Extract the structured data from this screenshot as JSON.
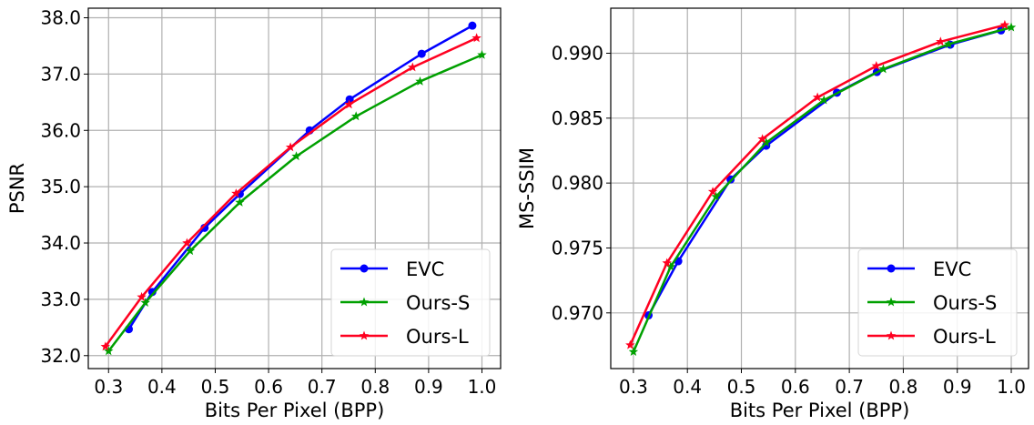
{
  "chart_data": [
    {
      "type": "line",
      "title": "",
      "xlabel": "Bits Per Pixel (BPP)",
      "ylabel": "PSNR",
      "xlim": [
        0.262,
        1.035
      ],
      "ylim": [
        31.77,
        38.17
      ],
      "xticks": [
        "0.3",
        "0.4",
        "0.5",
        "0.6",
        "0.7",
        "0.8",
        "0.9",
        "1.0"
      ],
      "yticks": [
        "32.0",
        "33.0",
        "34.0",
        "35.0",
        "36.0",
        "37.0",
        "38.0"
      ],
      "grid": true,
      "legend_position": "bottom-right",
      "series": [
        {
          "name": "EVC",
          "color": "#0000ff",
          "marker": "circle",
          "x": [
            0.338,
            0.382,
            0.48,
            0.546,
            0.677,
            0.752,
            0.887,
            0.982
          ],
          "y": [
            32.47,
            33.13,
            34.27,
            34.87,
            36.0,
            36.55,
            37.36,
            37.86
          ]
        },
        {
          "name": "Ours-S",
          "color": "#00a000",
          "marker": "star",
          "x": [
            0.3,
            0.369,
            0.453,
            0.546,
            0.652,
            0.764,
            0.884,
            1.0
          ],
          "y": [
            32.08,
            32.94,
            33.86,
            34.72,
            35.54,
            36.25,
            36.87,
            37.34
          ]
        },
        {
          "name": "Ours-L",
          "color": "#ff0020",
          "marker": "star",
          "x": [
            0.294,
            0.362,
            0.447,
            0.539,
            0.641,
            0.751,
            0.87,
            0.99
          ],
          "y": [
            32.16,
            33.04,
            34.0,
            34.88,
            35.7,
            36.46,
            37.12,
            37.64
          ]
        }
      ]
    },
    {
      "type": "line",
      "title": "",
      "xlabel": "Bits Per Pixel (BPP)",
      "ylabel": "MS-SSIM",
      "xlim": [
        0.258,
        1.032
      ],
      "ylim": [
        0.96571,
        0.99347
      ],
      "xticks": [
        "0.3",
        "0.4",
        "0.5",
        "0.6",
        "0.7",
        "0.8",
        "0.9",
        "1.0"
      ],
      "yticks": [
        "0.970",
        "0.975",
        "0.980",
        "0.985",
        "0.990"
      ],
      "grid": true,
      "legend_position": "bottom-right",
      "series": [
        {
          "name": "EVC",
          "color": "#0000ff",
          "marker": "circle",
          "x": [
            0.328,
            0.383,
            0.48,
            0.546,
            0.677,
            0.751,
            0.887,
            0.981
          ],
          "y": [
            0.96981,
            0.97398,
            0.98028,
            0.98288,
            0.98696,
            0.98855,
            0.99066,
            0.99176
          ]
        },
        {
          "name": "Ours-S",
          "color": "#00a000",
          "marker": "star",
          "x": [
            0.3,
            0.369,
            0.453,
            0.546,
            0.653,
            0.763,
            0.884,
            1.0
          ],
          "y": [
            0.967,
            0.97356,
            0.97895,
            0.98311,
            0.98639,
            0.98878,
            0.9907,
            0.99199
          ]
        },
        {
          "name": "Ours-L",
          "color": "#ff0020",
          "marker": "star",
          "x": [
            0.294,
            0.362,
            0.447,
            0.539,
            0.641,
            0.75,
            0.869,
            0.988
          ],
          "y": [
            0.96752,
            0.97384,
            0.97934,
            0.98339,
            0.9866,
            0.98902,
            0.99089,
            0.99218
          ]
        }
      ]
    }
  ]
}
